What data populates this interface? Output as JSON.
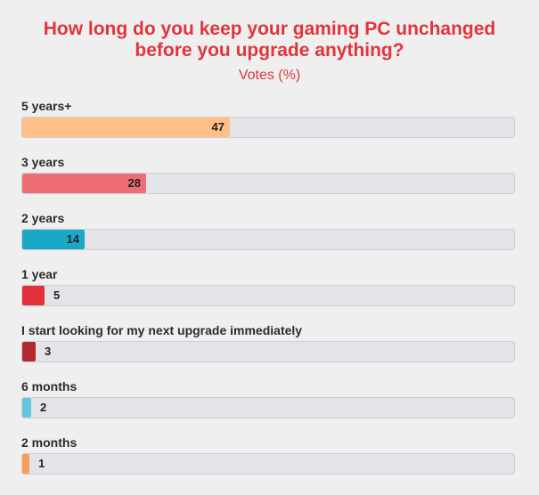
{
  "chart_data": {
    "type": "bar",
    "orientation": "horizontal",
    "title": "How long do you keep your gaming PC unchanged before you upgrade anything?",
    "subtitle": "Votes (%)",
    "xlim": [
      0,
      100
    ],
    "categories": [
      "5 years+",
      "3 years",
      "2 years",
      "1 year",
      "I start looking for my next upgrade immediately",
      "6 months",
      "2 months"
    ],
    "values": [
      47,
      28,
      14,
      5,
      3,
      2,
      1
    ],
    "colors": [
      "#ffbf86",
      "#ee6e73",
      "#1ba8c6",
      "#e3303a",
      "#b2282d",
      "#64c7e0",
      "#f79b58"
    ]
  }
}
